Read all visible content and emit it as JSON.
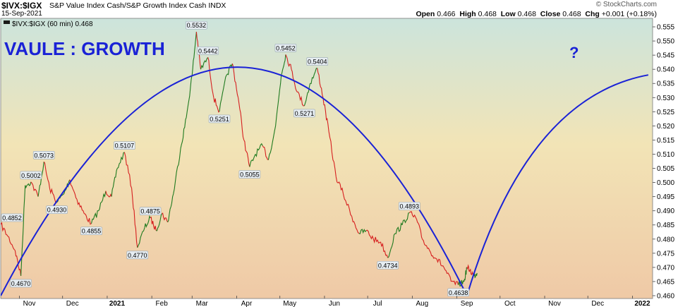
{
  "header": {
    "ticker": "$IVX:$IGX",
    "name": "S&P Value Index Cash/S&P Growth Index Cash",
    "exchange": "INDX",
    "date": "15-Sep-2021",
    "brand": "© StockCharts.com",
    "open_label": "Open",
    "open": "0.466",
    "high_label": "High",
    "high": "0.468",
    "low_label": "Low",
    "low": "0.468",
    "close_label": "Close",
    "close": "0.468",
    "chg_label": "Chg",
    "chg": "+0.001 (+0.18%)"
  },
  "colors": {
    "up": "#1f7a1f",
    "down": "#d61f1f",
    "arc": "#1a22d6",
    "annot": "#1a22d6",
    "bg_top": "#cce4dc",
    "bg_mid": "#f2e4b6",
    "bg_bottom": "#efc9a6"
  },
  "chart_data": {
    "type": "line",
    "title": "$IVX:$IGX",
    "legend": "$IVX:$IGX (60 min) 0.468",
    "annotations": [
      "VAULE : GROWTH",
      "?"
    ],
    "ylim": [
      0.459,
      0.558
    ],
    "y_ticks": [
      0.46,
      0.465,
      0.47,
      0.475,
      0.48,
      0.485,
      0.49,
      0.495,
      0.5,
      0.505,
      0.51,
      0.515,
      0.52,
      0.525,
      0.53,
      0.535,
      0.54,
      0.545,
      0.55,
      0.555
    ],
    "y_tick_labels": [
      "0.460",
      "0.465",
      "0.470",
      "0.475",
      "0.480",
      "0.485",
      "0.490",
      "0.495",
      "0.500",
      "0.505",
      "0.510",
      "0.515",
      "0.520",
      "0.525",
      "0.530",
      "0.535",
      "0.540",
      "0.545",
      "0.550",
      "0.555"
    ],
    "x_tick_labels": [
      "Nov",
      "Dec",
      "2021",
      "Feb",
      "Mar",
      "Apr",
      "May",
      "Jun",
      "Jul",
      "Aug",
      "Sep",
      "Oct",
      "Nov",
      "Dec",
      "2022"
    ],
    "x_tick_dates": [
      "2020-11-01",
      "2020-12-01",
      "2021-01-01",
      "2021-02-01",
      "2021-03-01",
      "2021-04-01",
      "2021-05-01",
      "2021-06-01",
      "2021-07-01",
      "2021-08-01",
      "2021-09-01",
      "2021-10-01",
      "2021-11-01",
      "2021-12-01",
      "2022-01-01"
    ],
    "xlim": [
      "2020-10-19",
      "2022-01-15"
    ],
    "series": [
      {
        "name": "$IVX:$IGX (60 min)",
        "x": [
          "2020-10-19",
          "2020-10-24",
          "2020-10-29",
          "2020-11-02",
          "2020-11-05",
          "2020-11-09",
          "2020-11-14",
          "2020-11-18",
          "2020-11-22",
          "2020-11-27",
          "2020-12-02",
          "2020-12-06",
          "2020-12-11",
          "2020-12-16",
          "2020-12-21",
          "2020-12-26",
          "2020-12-31",
          "2021-01-04",
          "2021-01-08",
          "2021-01-13",
          "2021-01-18",
          "2021-01-22",
          "2021-01-27",
          "2021-01-31",
          "2021-02-04",
          "2021-02-08",
          "2021-02-12",
          "2021-02-16",
          "2021-02-21",
          "2021-02-25",
          "2021-03-01",
          "2021-03-04",
          "2021-03-07",
          "2021-03-12",
          "2021-03-16",
          "2021-03-20",
          "2021-03-25",
          "2021-03-29",
          "2021-04-02",
          "2021-04-06",
          "2021-04-10",
          "2021-04-14",
          "2021-04-19",
          "2021-04-23",
          "2021-04-28",
          "2021-05-02",
          "2021-05-05",
          "2021-05-09",
          "2021-05-13",
          "2021-05-18",
          "2021-05-22",
          "2021-05-27",
          "2021-05-31",
          "2021-06-04",
          "2021-06-09",
          "2021-06-14",
          "2021-06-20",
          "2021-06-25",
          "2021-06-30",
          "2021-07-05",
          "2021-07-10",
          "2021-07-15",
          "2021-07-20",
          "2021-07-25",
          "2021-07-30",
          "2021-08-04",
          "2021-08-08",
          "2021-08-13",
          "2021-08-18",
          "2021-08-23",
          "2021-08-28",
          "2021-09-02",
          "2021-09-06",
          "2021-09-08",
          "2021-09-10",
          "2021-09-13",
          "2021-09-15"
        ],
        "values": [
          0.4852,
          0.481,
          0.476,
          0.467,
          0.499,
          0.5002,
          0.495,
          0.5073,
          0.498,
          0.493,
          0.496,
          0.501,
          0.494,
          0.489,
          0.4855,
          0.49,
          0.497,
          0.495,
          0.505,
          0.5107,
          0.498,
          0.477,
          0.484,
          0.4875,
          0.483,
          0.489,
          0.486,
          0.496,
          0.512,
          0.523,
          0.538,
          0.5532,
          0.54,
          0.5442,
          0.53,
          0.5251,
          0.538,
          0.542,
          0.53,
          0.515,
          0.5055,
          0.51,
          0.513,
          0.508,
          0.52,
          0.538,
          0.5452,
          0.54,
          0.532,
          0.5271,
          0.535,
          0.5404,
          0.53,
          0.518,
          0.502,
          0.496,
          0.488,
          0.482,
          0.483,
          0.48,
          0.479,
          0.4734,
          0.482,
          0.485,
          0.4893,
          0.487,
          0.48,
          0.476,
          0.473,
          0.47,
          0.465,
          0.4638,
          0.465,
          0.47,
          0.469,
          0.467,
          0.468
        ]
      }
    ],
    "peak_labels": [
      {
        "date": "2020-10-19",
        "value": 0.4852,
        "text": "0.4852",
        "pos": "above"
      },
      {
        "date": "2020-11-02",
        "value": 0.467,
        "text": "0.4670",
        "pos": "below"
      },
      {
        "date": "2020-11-09",
        "value": 0.5002,
        "text": "0.5002",
        "pos": "above"
      },
      {
        "date": "2020-11-18",
        "value": 0.5073,
        "text": "0.5073",
        "pos": "above"
      },
      {
        "date": "2020-11-27",
        "value": 0.493,
        "text": "0.4930",
        "pos": "below"
      },
      {
        "date": "2020-12-21",
        "value": 0.4855,
        "text": "0.4855",
        "pos": "below"
      },
      {
        "date": "2021-01-13",
        "value": 0.5107,
        "text": "0.5107",
        "pos": "above"
      },
      {
        "date": "2021-01-22",
        "value": 0.477,
        "text": "0.4770",
        "pos": "below"
      },
      {
        "date": "2021-01-31",
        "value": 0.4875,
        "text": "0.4875",
        "pos": "above"
      },
      {
        "date": "2021-03-04",
        "value": 0.5532,
        "text": "0.5532",
        "pos": "above"
      },
      {
        "date": "2021-03-12",
        "value": 0.5442,
        "text": "0.5442",
        "pos": "above"
      },
      {
        "date": "2021-03-20",
        "value": 0.5251,
        "text": "0.5251",
        "pos": "below"
      },
      {
        "date": "2021-04-10",
        "value": 0.5055,
        "text": "0.5055",
        "pos": "below"
      },
      {
        "date": "2021-05-05",
        "value": 0.5452,
        "text": "0.5452",
        "pos": "above"
      },
      {
        "date": "2021-05-18",
        "value": 0.5271,
        "text": "0.5271",
        "pos": "below"
      },
      {
        "date": "2021-05-27",
        "value": 0.5404,
        "text": "0.5404",
        "pos": "above"
      },
      {
        "date": "2021-07-15",
        "value": 0.4734,
        "text": "0.4734",
        "pos": "below"
      },
      {
        "date": "2021-07-30",
        "value": 0.4893,
        "text": "0.4893",
        "pos": "above"
      },
      {
        "date": "2021-09-02",
        "value": 0.4638,
        "text": "0.4638",
        "pos": "below"
      }
    ],
    "arcs": [
      {
        "start": [
          "2020-10-19",
          0.46
        ],
        "control": [
          "2021-04-04",
          0.6215
        ],
        "end": [
          "2021-09-08",
          0.46
        ]
      },
      {
        "start": [
          "2021-09-08",
          0.46
        ],
        "control": [
          "2021-10-19",
          0.53
        ],
        "end": [
          "2022-01-12",
          0.538
        ]
      }
    ],
    "grid": false,
    "legend_position": "top-left"
  }
}
